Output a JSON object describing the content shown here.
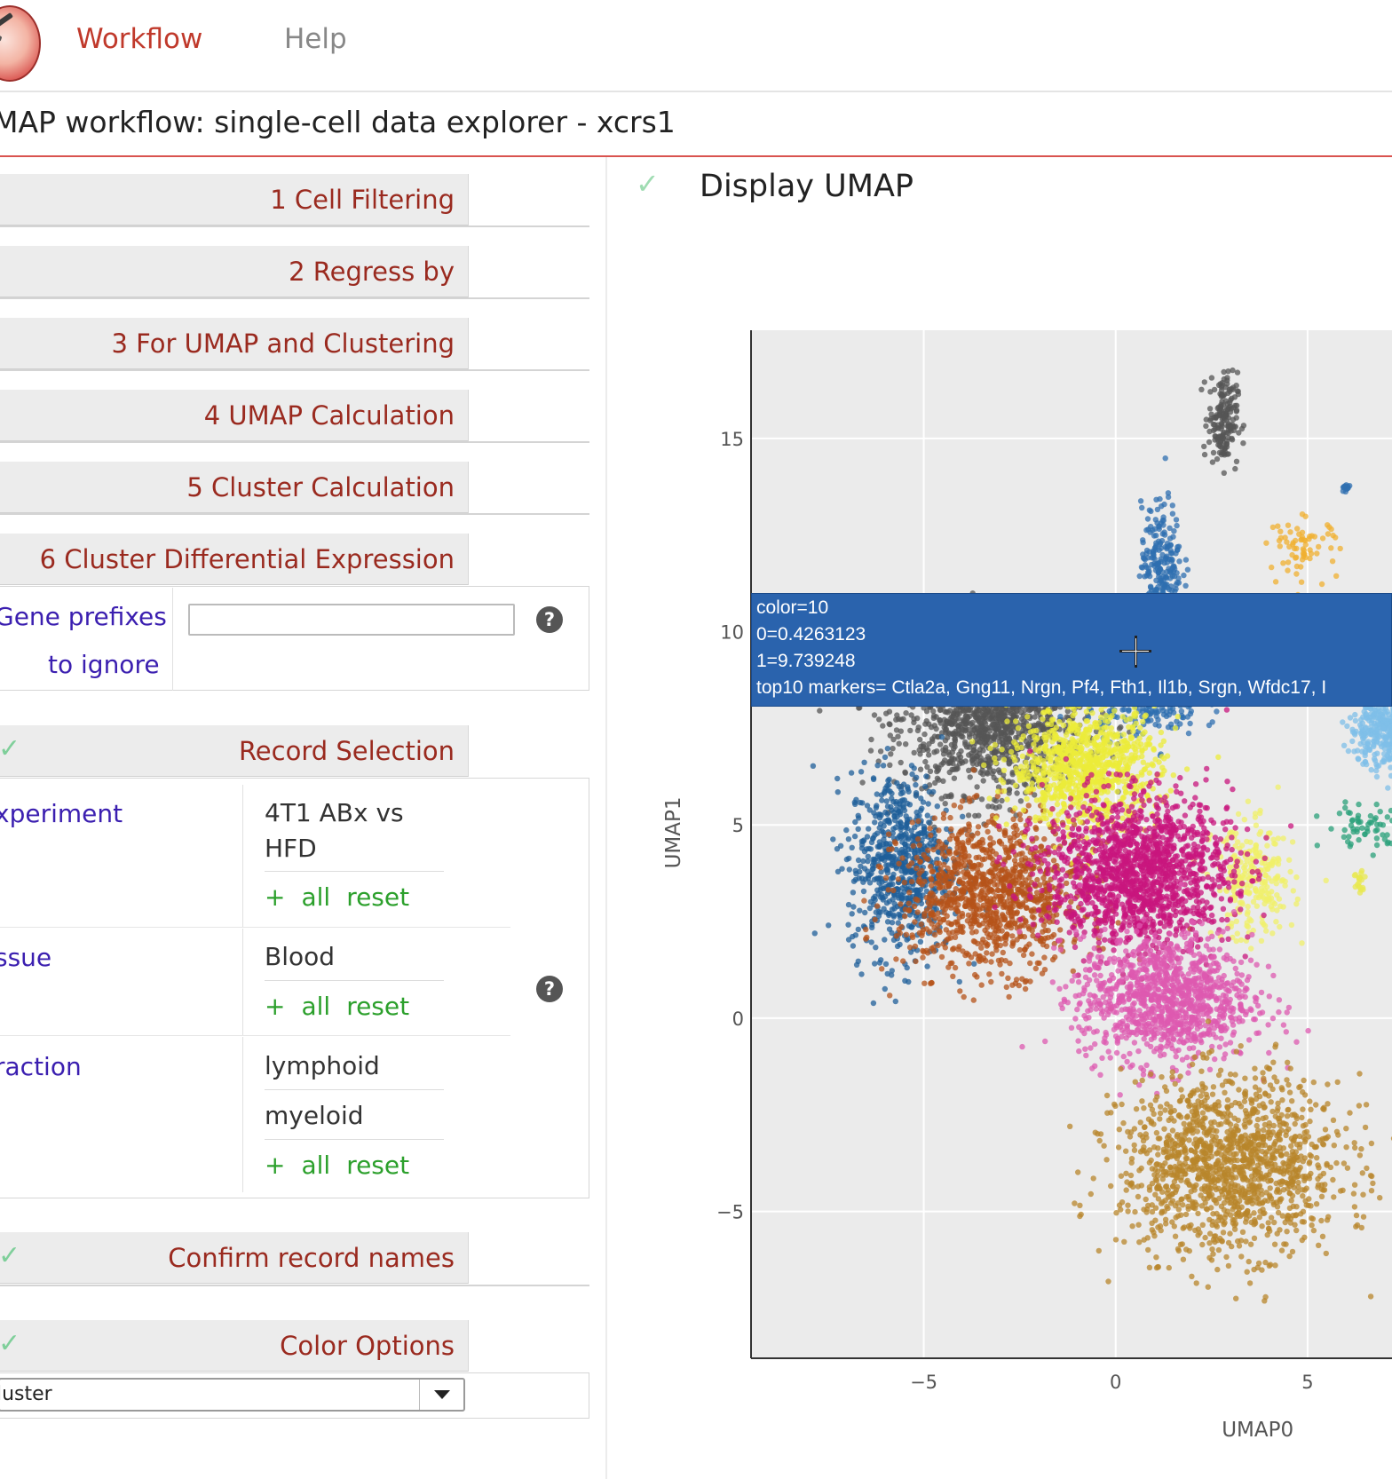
{
  "nav": {
    "workflow": "Workflow",
    "help": "Help"
  },
  "page_title": "MAP workflow: single-cell data explorer - xcrs1",
  "accordion": [
    {
      "label": "1 Cell Filtering"
    },
    {
      "label": "2 Regress by"
    },
    {
      "label": "3 For UMAP and Clustering"
    },
    {
      "label": "4 UMAP Calculation"
    },
    {
      "label": "5 Cluster Calculation"
    },
    {
      "label": "6 Cluster Differential Expression"
    }
  ],
  "gene_prefixes": {
    "label_line1": "Gene prefixes",
    "label_line2": "to ignore",
    "value": ""
  },
  "record_selection": {
    "title": "Record Selection",
    "experiment_label": "xperiment",
    "experiment_values": [
      "4T1 ABx vs",
      "HFD"
    ],
    "tissue_label": "ssue",
    "tissue_values": [
      "Blood"
    ],
    "fraction_label": "raction",
    "fraction_values": [
      "lymphoid",
      "myeloid"
    ],
    "action_add": "+",
    "action_all": "all",
    "action_reset": "reset"
  },
  "confirm_record_names": "Confirm record names",
  "color_options": {
    "title": "Color Options",
    "selected": "luster"
  },
  "display": {
    "title": "Display UMAP"
  },
  "tooltip": {
    "line1": "color=10",
    "line2": "0=0.4263123",
    "line3": "1=9.739248",
    "line4": "top10 markers= Ctla2a, Gng11, Nrgn, Pf4, Fth1, Il1b, Srgn, Wfdc17, I"
  },
  "colors": {
    "accent_red": "#c0392b",
    "label_purple": "#3b1fb0",
    "action_green": "#2ca02c",
    "tooltip_blue": "#2a63ad"
  },
  "chart_data": {
    "type": "scatter",
    "xlabel": "UMAP0",
    "ylabel": "UMAP1",
    "xlim": [
      -9.5,
      7.2
    ],
    "ylim": [
      -8.8,
      17.8
    ],
    "xticks": [
      -5,
      0,
      5
    ],
    "yticks": [
      -5,
      0,
      5,
      10,
      15
    ],
    "xtick_labels": [
      "−5",
      "0",
      "5"
    ],
    "ytick_labels": [
      "−5",
      "0",
      "5",
      "10",
      "15"
    ],
    "grid": true,
    "clusters": [
      {
        "color": "#555555",
        "cx": -3.2,
        "cy": 7.8,
        "sx": 1.6,
        "sy": 1.3,
        "n": 1400
      },
      {
        "color": "#555555",
        "cx": 2.8,
        "cy": 15.5,
        "sx": 0.25,
        "sy": 0.8,
        "n": 180
      },
      {
        "color": "#1f5f99",
        "cx": -5.6,
        "cy": 4.0,
        "sx": 0.9,
        "sy": 1.6,
        "n": 700
      },
      {
        "color": "#2f6fb0",
        "cx": 1.2,
        "cy": 11.8,
        "sx": 0.35,
        "sy": 1.0,
        "n": 220
      },
      {
        "color": "#2f6fb0",
        "cx": 0.7,
        "cy": 8.2,
        "sx": 1.0,
        "sy": 0.6,
        "n": 260
      },
      {
        "color": "#b5531a",
        "cx": -3.2,
        "cy": 3.2,
        "sx": 1.6,
        "sy": 1.3,
        "n": 1100
      },
      {
        "color": "#ecec3a",
        "cx": -0.8,
        "cy": 6.5,
        "sx": 1.3,
        "sy": 1.0,
        "n": 900
      },
      {
        "color": "#f0f06a",
        "cx": 3.6,
        "cy": 3.5,
        "sx": 0.7,
        "sy": 1.0,
        "n": 260
      },
      {
        "color": "#c8157e",
        "cx": 0.6,
        "cy": 3.8,
        "sx": 1.6,
        "sy": 1.3,
        "n": 1500
      },
      {
        "color": "#de5ab0",
        "cx": 1.3,
        "cy": 0.5,
        "sx": 1.5,
        "sy": 1.1,
        "n": 1100
      },
      {
        "color": "#b8862b",
        "cx": 3.0,
        "cy": -3.8,
        "sx": 1.9,
        "sy": 1.5,
        "n": 1400
      },
      {
        "color": "#7fbfe8",
        "cx": 7.0,
        "cy": 7.5,
        "sx": 0.6,
        "sy": 0.7,
        "n": 400
      },
      {
        "color": "#f0b030",
        "cx": 4.9,
        "cy": 12.2,
        "sx": 0.6,
        "sy": 0.5,
        "n": 70
      },
      {
        "color": "#2aa07a",
        "cx": 6.5,
        "cy": 5.0,
        "sx": 0.7,
        "sy": 0.4,
        "n": 60
      },
      {
        "color": "#2f6fb0",
        "cx": 6.0,
        "cy": 13.7,
        "sx": 0.1,
        "sy": 0.1,
        "n": 12
      },
      {
        "color": "#e8e850",
        "cx": 6.4,
        "cy": 3.5,
        "sx": 0.12,
        "sy": 0.3,
        "n": 20
      }
    ]
  }
}
